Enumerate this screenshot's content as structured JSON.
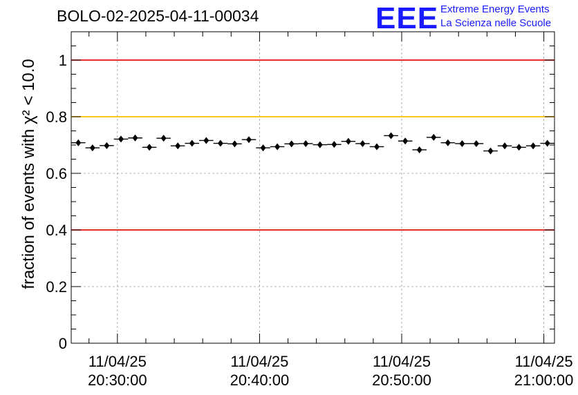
{
  "title": "BOLO-02-2025-04-11-00034",
  "logo": {
    "mark": "EEE",
    "line1": "Extreme Energy Events",
    "line2": "La Scienza nelle Scuole"
  },
  "colors": {
    "limit_red": "#e01010",
    "limit_yellow": "#ffc000",
    "points": "#000000",
    "grid": "#9a9a9a",
    "logo_blue": "#1a1aff"
  },
  "chart_data": {
    "type": "scatter",
    "ylabel": "fraction of events with χ² < 10.0",
    "ylim": [
      0,
      1.1
    ],
    "yticks": [
      "0",
      "0.2",
      "0.4",
      "0.6",
      "0.8",
      "1"
    ],
    "ytick_values": [
      0,
      0.2,
      0.4,
      0.6,
      0.8,
      1.0
    ],
    "xlim": [
      "2025-04-11 20:26:45",
      "2025-04-11 21:00:45"
    ],
    "xticks": [
      {
        "t": "2025-04-11 20:30:00",
        "line1": "11/04/25",
        "line2": "20:30:00"
      },
      {
        "t": "2025-04-11 20:40:00",
        "line1": "11/04/25",
        "line2": "20:40:00"
      },
      {
        "t": "2025-04-11 20:50:00",
        "line1": "11/04/25",
        "line2": "20:50:00"
      },
      {
        "t": "2025-04-11 21:00:00",
        "line1": "11/04/25",
        "line2": "21:00:00"
      }
    ],
    "grid": true,
    "hlines": [
      {
        "y": 1.0,
        "color": "#e01010"
      },
      {
        "y": 0.8,
        "color": "#ffc000"
      },
      {
        "y": 0.4,
        "color": "#e01010"
      }
    ],
    "bin_width_seconds": 60,
    "series": [
      {
        "x": [
          "2025-04-11 20:27:15",
          "2025-04-11 20:28:15",
          "2025-04-11 20:29:15",
          "2025-04-11 20:30:15",
          "2025-04-11 20:31:15",
          "2025-04-11 20:32:15",
          "2025-04-11 20:33:15",
          "2025-04-11 20:34:15",
          "2025-04-11 20:35:15",
          "2025-04-11 20:36:15",
          "2025-04-11 20:37:15",
          "2025-04-11 20:38:15",
          "2025-04-11 20:39:15",
          "2025-04-11 20:40:15",
          "2025-04-11 20:41:15",
          "2025-04-11 20:42:15",
          "2025-04-11 20:43:15",
          "2025-04-11 20:44:15",
          "2025-04-11 20:45:15",
          "2025-04-11 20:46:15",
          "2025-04-11 20:47:15",
          "2025-04-11 20:48:15",
          "2025-04-11 20:49:15",
          "2025-04-11 20:50:15",
          "2025-04-11 20:51:15",
          "2025-04-11 20:52:15",
          "2025-04-11 20:53:15",
          "2025-04-11 20:54:15",
          "2025-04-11 20:55:15",
          "2025-04-11 20:56:15",
          "2025-04-11 20:57:15",
          "2025-04-11 20:58:15",
          "2025-04-11 20:59:15",
          "2025-04-11 21:00:15"
        ],
        "values": [
          0.708,
          0.69,
          0.698,
          0.721,
          0.725,
          0.692,
          0.724,
          0.697,
          0.706,
          0.716,
          0.706,
          0.704,
          0.719,
          0.69,
          0.694,
          0.704,
          0.705,
          0.701,
          0.702,
          0.713,
          0.705,
          0.694,
          0.733,
          0.714,
          0.683,
          0.727,
          0.708,
          0.705,
          0.705,
          0.679,
          0.697,
          0.692,
          0.697,
          0.706
        ],
        "errors": [
          0.009,
          0.009,
          0.009,
          0.009,
          0.009,
          0.009,
          0.009,
          0.009,
          0.009,
          0.009,
          0.009,
          0.009,
          0.009,
          0.009,
          0.009,
          0.009,
          0.009,
          0.009,
          0.009,
          0.009,
          0.009,
          0.009,
          0.009,
          0.009,
          0.009,
          0.009,
          0.009,
          0.009,
          0.009,
          0.009,
          0.009,
          0.009,
          0.009,
          0.009
        ]
      }
    ]
  }
}
